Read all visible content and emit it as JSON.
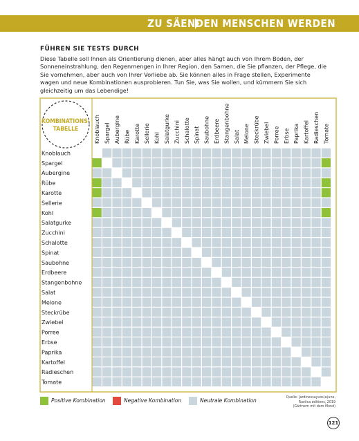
{
  "header": {
    "title": "ZU SÄENDEN MENSCHEN WERDEN"
  },
  "section": {
    "heading": "FÜHREN SIE TESTS DURCH",
    "intro": "Diese Tabelle soll Ihnen als Orientierung dienen, aber alles hängt auch von Ihrem Boden, der Sonneneinstrahlung, den Regenmengen in Ihrer Region, den Samen, die Sie pflanzen, der Pflege, die Sie vornehmen, aber auch von Ihrer Vorliebe ab. Sie können alles in Frage stellen, Experimente wagen und neue Kombinationen ausprobieren. Tun Sie, was Sie wollen, und kümmern Sie sich gleichzeitig um das Lebendige!"
  },
  "table": {
    "badge_line1": "KOMBINATIONS-",
    "badge_line2": "TABELLE",
    "columns": [
      "Knoblauch",
      "Spargel",
      "Aubergine",
      "Rübe",
      "Karotte",
      "Sellerie",
      "Kohl",
      "Salatgurke",
      "Zucchini",
      "Schalotte",
      "Spinat",
      "Saubohne",
      "Erdbeere",
      "Stangenbohne",
      "Salat",
      "Melone",
      "Steckrübe",
      "Zwiebel",
      "Porree",
      "Erbse",
      "Paprika",
      "Kartoffel",
      "Radieschen",
      "Tomate"
    ],
    "rows": [
      "Knoblauch",
      "Spargel",
      "Aubergine",
      "Rübe",
      "Karotte",
      "Sellerie",
      "Kohl",
      "Salatgurke",
      "Zucchini",
      "Schalotte",
      "Spinat",
      "Saubohne",
      "Erdbeere",
      "Stangenbohne",
      "Salat",
      "Melone",
      "Steckrübe",
      "Zwiebel",
      "Porree",
      "Erbse",
      "Paprika",
      "Kartoffel",
      "Radieschen",
      "Tomate"
    ],
    "cells": [
      "NNNNNNNNNNNNNNNNNNNNNNNN",
      "PNNNNNNNNNNNNNNNNNNNNNNP",
      "NNNNNNNNNNNNNNNNNNNNNNNN",
      "PNNNNNNNNNNNNNNNNNNNNNNP",
      "PNNNNNNNNNNNNNNNNNNNNNNP",
      "NNNNNNNNNNNNNNNNNNNNNNNN",
      "PNNNNNNNNNNNNNNNNNNNNNNP",
      "NNNNNNNNNNNNNNNNNNNNNNNN",
      "NNNNNNNNNNNNNNNNNNNNNNNN",
      "NNNNNNNNNNNNNNNNNNNNNNNN",
      "NNNNNNNNNNNNNNNNNNNNNNNN",
      "NNNNNNNNNNNNNNNNNNNNNNNN",
      "NNNNNNNNNNNNNNNNNNNNNNNN",
      "NNNNNNNNNNNNNNNNNNNNNNNN",
      "NNNNNNNNNNNNNNNNNNNNNNNN",
      "NNNNNNNNNNNNNNNNNNNNNNNN",
      "NNNNNNNNNNNNNNNNNNNNNNNN",
      "NNNNNNNNNNNNNNNNNNNNNNNN",
      "NNNNNNNNNNNNNNNNNNNNNNNN",
      "NNNNNNNNNNNNNNNNNNNNNNNN",
      "NNNNNNNNNNNNNNNNNNNNNNNN",
      "NNNNNNNNNNNNNNNNNNNNNNNN",
      "NNNNNNNNNNNNNNNNNNNNNNNN",
      "NNNNNNNNNNNNNNNNNNNNNNNN"
    ]
  },
  "legend": {
    "positive": "Positive Kombination",
    "negative": "Negative Kombination",
    "neutral": "Neutrale Kombination"
  },
  "source": {
    "line1": "Quelle: Jardinessayvos(a)une,",
    "line2": "Rustica éditions, 2019",
    "line3": "(Gärtnern mit dem Mond)"
  },
  "page_number": "121",
  "colors": {
    "accent": "#c4aa24",
    "positive": "#8fc13a",
    "negative": "#e2483b",
    "neutral": "#c9d6de"
  }
}
